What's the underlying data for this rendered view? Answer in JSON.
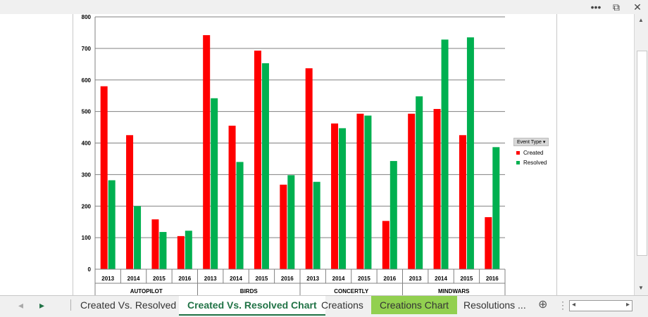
{
  "window": {
    "more_label": "•••",
    "restore_label": "⧉",
    "close_label": "✕"
  },
  "tabs": [
    {
      "label": "Created Vs. Resolved",
      "state": "normal"
    },
    {
      "label": "Created Vs. Resolved Chart",
      "state": "active"
    },
    {
      "label": "Creations",
      "state": "normal"
    },
    {
      "label": "Creations Chart",
      "state": "highlight"
    },
    {
      "label": "Resolutions ...",
      "state": "normal"
    }
  ],
  "nav": {
    "prev": "◂",
    "next": "▸",
    "add": "+",
    "more": "⋮"
  },
  "colors": {
    "created": "#ff0000",
    "resolved": "#00b050",
    "grid": "#808080",
    "tab_active": "#217346",
    "tab_highlight": "#92d050"
  },
  "chart_data": {
    "type": "bar",
    "ylim": [
      0,
      800
    ],
    "yticks": [
      0,
      100,
      200,
      300,
      400,
      500,
      600,
      700,
      800
    ],
    "groups": [
      {
        "name": "AUTOPILOT",
        "years": [
          "2013",
          "2014",
          "2015",
          "2016"
        ]
      },
      {
        "name": "BIRDS",
        "years": [
          "2013",
          "2014",
          "2015",
          "2016"
        ]
      },
      {
        "name": "CONCERTLY",
        "years": [
          "2013",
          "2014",
          "2015",
          "2016"
        ]
      },
      {
        "name": "MINDWARS",
        "years": [
          "2013",
          "2014",
          "2015",
          "2016"
        ]
      }
    ],
    "legend_title": "Event Type",
    "series": [
      {
        "name": "Created",
        "color": "#ff0000",
        "values": [
          580,
          425,
          158,
          105,
          742,
          455,
          693,
          268,
          637,
          462,
          493,
          153,
          493,
          508,
          425,
          165
        ]
      },
      {
        "name": "Resolved",
        "color": "#00b050",
        "values": [
          282,
          200,
          118,
          122,
          542,
          340,
          653,
          298,
          277,
          447,
          487,
          343,
          548,
          728,
          735,
          387
        ]
      }
    ]
  }
}
